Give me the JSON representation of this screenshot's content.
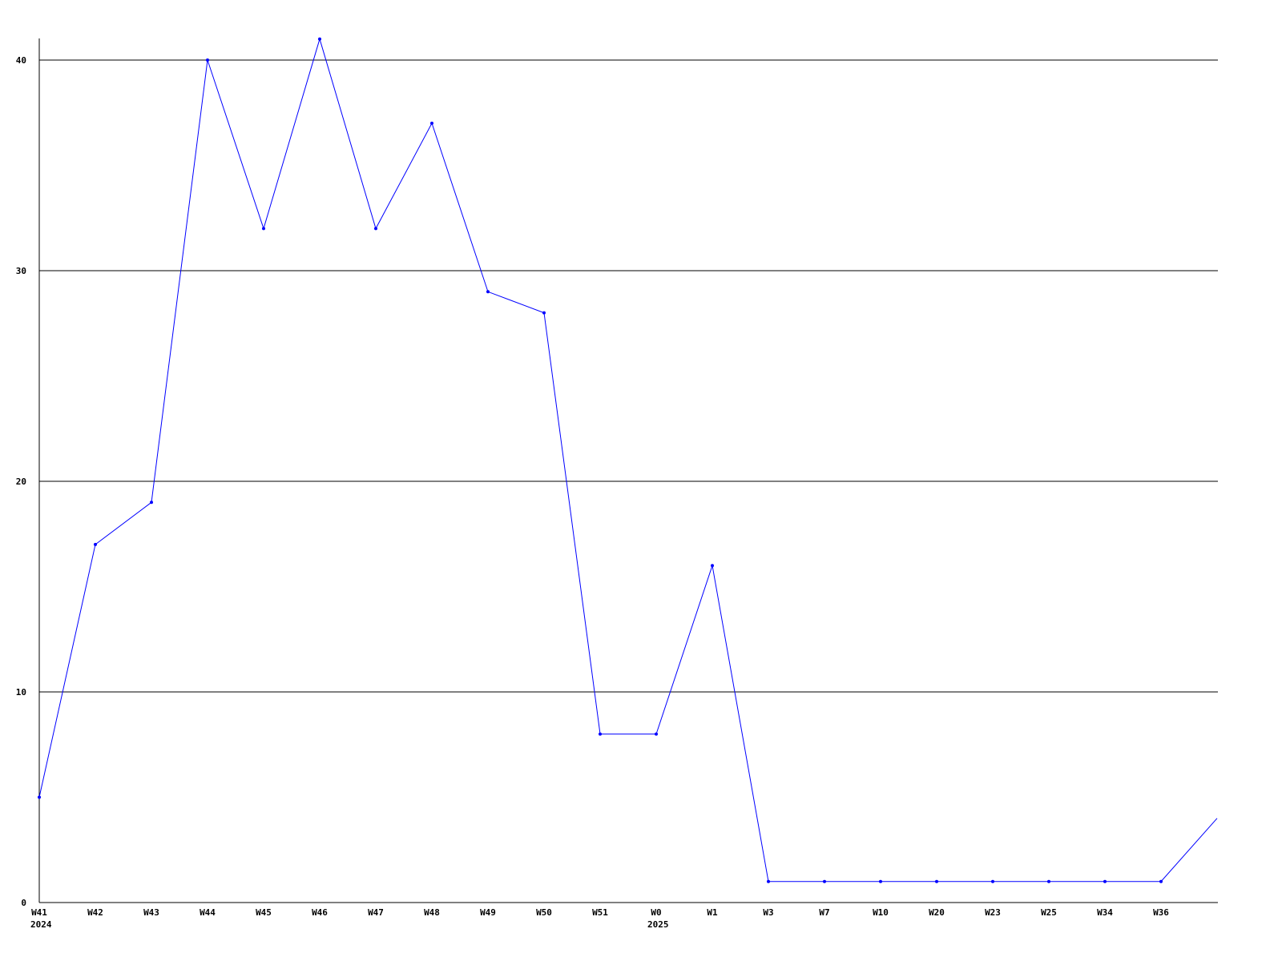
{
  "chart_data": {
    "type": "line",
    "title": "",
    "xlabel": "",
    "ylabel": "",
    "ylim": [
      0,
      41
    ],
    "yticks": [
      0,
      10,
      20,
      30,
      40
    ],
    "grid": "horizontal",
    "colors": {
      "series": "#0000ff",
      "grid": "#000000",
      "axis": "#000000"
    },
    "categories": [
      "W41",
      "W42",
      "W43",
      "W44",
      "W45",
      "W46",
      "W47",
      "W48",
      "W49",
      "W50",
      "W51",
      "W0",
      "W1",
      "W3",
      "W7",
      "W10",
      "W20",
      "W23",
      "W25",
      "W34",
      "W36",
      ""
    ],
    "year_labels": [
      {
        "category_index": 0,
        "text": "2024"
      },
      {
        "category_index": 11,
        "text": "2025"
      }
    ],
    "series": [
      {
        "values": [
          5,
          17,
          19,
          40,
          32,
          41,
          32,
          37,
          29,
          28,
          8,
          8,
          16,
          1,
          1,
          1,
          1,
          1,
          1,
          1,
          1,
          4
        ]
      }
    ]
  }
}
